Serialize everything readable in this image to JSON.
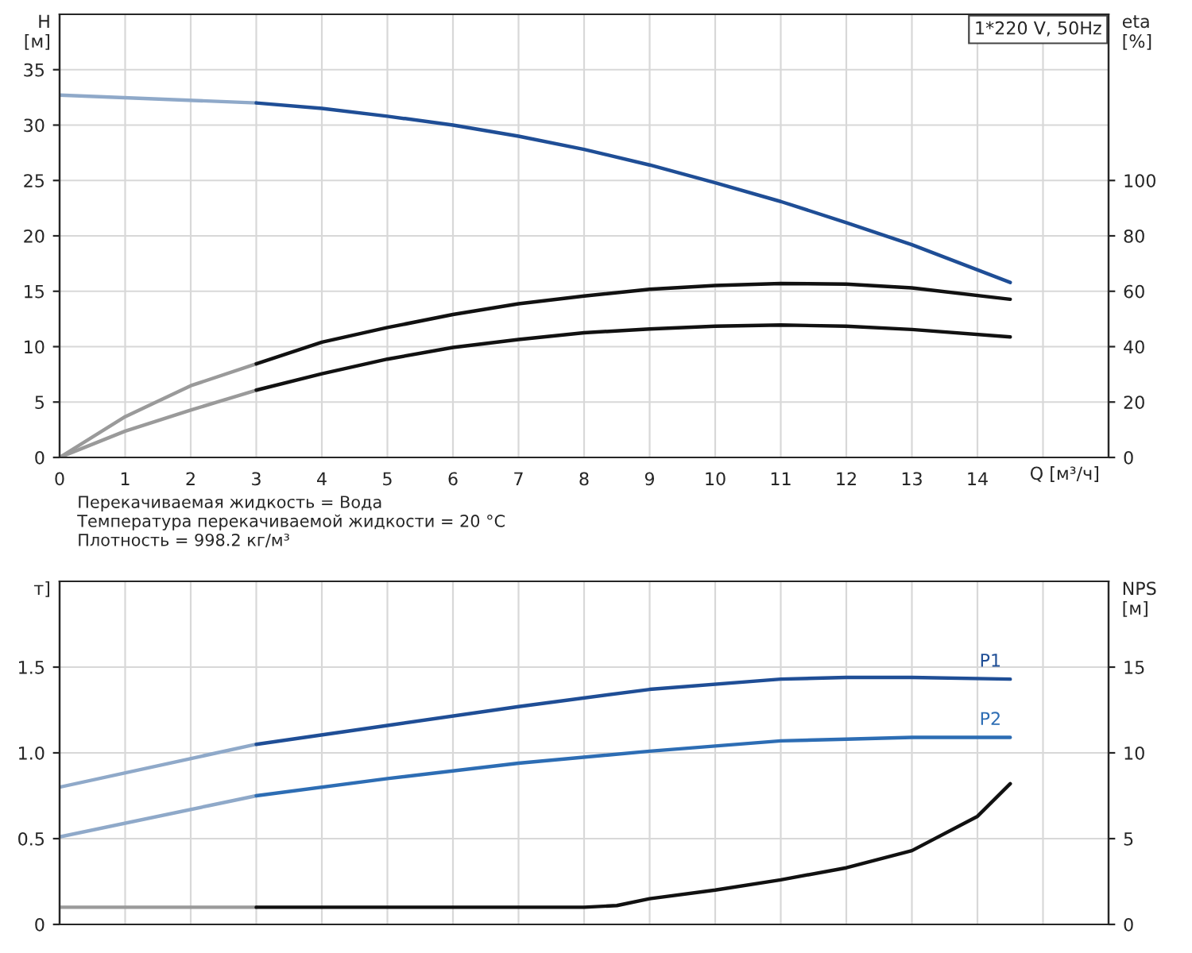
{
  "chart_data": [
    {
      "type": "line",
      "xlabel": "Q [м³/ч]",
      "ylabel": "H\n[м]",
      "y2label": "eta\n[%]",
      "xlim": [
        0,
        16
      ],
      "xticks": [
        0,
        1,
        2,
        3,
        4,
        5,
        6,
        7,
        8,
        9,
        10,
        11,
        12,
        13,
        14,
        {
          "value": 15,
          "label": null
        }
      ],
      "ylim": [
        0,
        40
      ],
      "yticks": [
        0,
        5,
        10,
        15,
        20,
        25,
        30,
        35
      ],
      "y2lim": [
        0,
        160
      ],
      "y2ticks": [
        0,
        20,
        40,
        60,
        80,
        100
      ],
      "grid": true,
      "legend": false,
      "series": [
        {
          "color": "#8fa9c9",
          "x": [
            0,
            3
          ],
          "values": [
            32.7,
            32.0
          ]
        },
        {
          "color": "#1f4e96",
          "x": [
            3,
            4,
            5,
            6,
            7,
            8,
            9,
            10,
            11,
            12,
            13,
            14.5
          ],
          "values": [
            32.0,
            31.5,
            30.8,
            30.0,
            29.0,
            27.8,
            26.4,
            24.8,
            23.1,
            21.2,
            19.2,
            15.8
          ]
        },
        {
          "color": "#9a9a9a",
          "axis": "y2",
          "x": [
            0,
            1,
            2,
            3
          ],
          "values": [
            0,
            14.7,
            25.9,
            33.8
          ]
        },
        {
          "color": "#111111",
          "axis": "y2",
          "x": [
            3,
            4,
            5,
            6,
            7,
            8,
            9,
            10,
            11,
            12,
            13,
            14.5
          ],
          "values": [
            33.8,
            41.6,
            46.9,
            51.6,
            55.5,
            58.3,
            60.7,
            62.1,
            62.8,
            62.6,
            61.2,
            57.1
          ]
        },
        {
          "color": "#9a9a9a",
          "axis": "y2",
          "x": [
            0,
            1,
            2,
            3
          ],
          "values": [
            0,
            9.5,
            17.1,
            24.3
          ]
        },
        {
          "color": "#111111",
          "axis": "y2",
          "x": [
            3,
            4,
            5,
            6,
            7,
            8,
            9,
            10,
            11,
            12,
            13,
            14.5
          ],
          "values": [
            24.3,
            30.2,
            35.5,
            39.7,
            42.6,
            45.0,
            46.4,
            47.4,
            47.8,
            47.4,
            46.2,
            43.5
          ]
        }
      ],
      "annotations": [
        "1*220 V, 50Hz",
        "Перекачиваемая жидкость = Вода",
        "Температура перекачиваемой жидкости = 20 °C",
        "Плотность = 998.2 кг/м³"
      ]
    },
    {
      "type": "line",
      "ylabel": "т]",
      "y2label": "NPS\n[м]",
      "tick_labels": "y",
      "xlim": [
        0,
        16
      ],
      "xticks": [
        0,
        1,
        2,
        3,
        4,
        5,
        6,
        7,
        8,
        9,
        10,
        11,
        12,
        13,
        14,
        15
      ],
      "ylim": [
        0,
        2
      ],
      "yticks": [
        0,
        0.5,
        {
          "value": 1,
          "label": "1.0"
        },
        1.5
      ],
      "y2lim": [
        0,
        20
      ],
      "y2ticks": [
        0,
        5,
        10,
        15
      ],
      "grid": true,
      "legend": false,
      "series": [
        {
          "color": "#8fa9c9",
          "x": [
            0,
            3
          ],
          "values": [
            0.8,
            1.05
          ]
        },
        {
          "name": "P1",
          "color": "#1f4e96",
          "x": [
            3,
            5,
            7,
            9,
            11,
            12,
            13,
            14.5
          ],
          "values": [
            1.05,
            1.16,
            1.27,
            1.37,
            1.43,
            1.44,
            1.44,
            1.43
          ]
        },
        {
          "color": "#8fa9c9",
          "x": [
            0,
            3
          ],
          "values": [
            0.51,
            0.75
          ]
        },
        {
          "name": "P2",
          "color": "#2d6db4",
          "x": [
            3,
            5,
            7,
            9,
            11,
            12,
            13,
            14.5
          ],
          "values": [
            0.75,
            0.85,
            0.94,
            1.01,
            1.07,
            1.08,
            1.09,
            1.09
          ]
        },
        {
          "color": "#9a9a9a",
          "axis": "y2",
          "x": [
            0,
            3
          ],
          "values": [
            1.0,
            1.0
          ]
        },
        {
          "color": "#111111",
          "axis": "y2",
          "x": [
            3,
            5,
            8,
            8.5,
            9,
            10,
            11,
            12,
            13,
            14,
            14.5
          ],
          "values": [
            1.0,
            1.0,
            1.0,
            1.1,
            1.5,
            2.0,
            2.6,
            3.3,
            4.3,
            6.3,
            8.2
          ]
        }
      ]
    }
  ]
}
